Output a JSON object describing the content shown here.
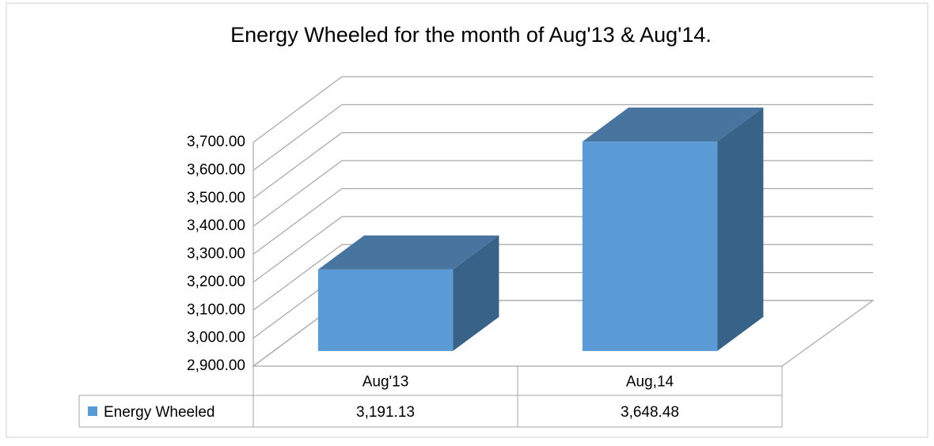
{
  "chart_data": {
    "type": "bar3d",
    "title": "Energy Wheeled for the month of  Aug'13 &  Aug'14.",
    "categories": [
      "Aug'13",
      "Aug,14"
    ],
    "series": [
      {
        "name": "Energy Wheeled",
        "color": "#5b9bd5",
        "values": [
          3191.13,
          3648.48
        ],
        "value_labels": [
          "3,191.13",
          "3,648.48"
        ]
      }
    ],
    "ylim": [
      2900,
      3700
    ],
    "yticks": [
      {
        "value": 2900,
        "label": "2,900.00"
      },
      {
        "value": 3000,
        "label": "3,000.00"
      },
      {
        "value": 3100,
        "label": "3,100.00"
      },
      {
        "value": 3200,
        "label": "3,200.00"
      },
      {
        "value": 3300,
        "label": "3,300.00"
      },
      {
        "value": 3400,
        "label": "3,400.00"
      },
      {
        "value": 3500,
        "label": "3,500.00"
      },
      {
        "value": 3600,
        "label": "3,600.00"
      },
      {
        "value": 3700,
        "label": "3,700.00"
      }
    ],
    "grid": true
  }
}
